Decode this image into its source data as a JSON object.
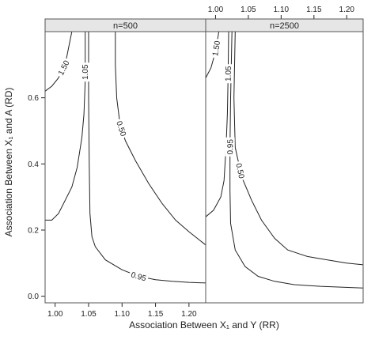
{
  "chart_data": {
    "type": "contour",
    "xlabel": "Association Between X₁ and Y (RR)",
    "ylabel": "Association Between X₁ and A (RD)",
    "xlim": [
      0.985,
      1.225
    ],
    "ylim": [
      -0.02,
      0.8
    ],
    "xticks": [
      1.0,
      1.05,
      1.1,
      1.15,
      1.2
    ],
    "xtick_labels": [
      "1.00",
      "1.05",
      "1.10",
      "1.15",
      "1.20"
    ],
    "yticks": [
      0.0,
      0.2,
      0.4,
      0.6
    ],
    "ytick_labels": [
      "0.0",
      "0.2",
      "0.4",
      "0.6"
    ],
    "panels": [
      {
        "strip": "n=500",
        "contours": [
          {
            "level": "1.50",
            "points": [
              [
                0.985,
                0.62
              ],
              [
                0.995,
                0.635
              ],
              [
                1.005,
                0.66
              ],
              [
                1.015,
                0.7
              ],
              [
                1.02,
                0.75
              ],
              [
                1.025,
                0.8
              ]
            ]
          },
          {
            "level": "1.05",
            "points": [
              [
                0.985,
                0.23
              ],
              [
                0.995,
                0.23
              ],
              [
                1.005,
                0.25
              ],
              [
                1.015,
                0.29
              ],
              [
                1.025,
                0.33
              ],
              [
                1.033,
                0.39
              ],
              [
                1.04,
                0.48
              ],
              [
                1.043,
                0.55
              ],
              [
                1.045,
                0.65
              ],
              [
                1.045,
                0.8
              ]
            ]
          },
          {
            "level": "0.50",
            "points": [
              [
                1.09,
                0.8
              ],
              [
                1.09,
                0.7
              ],
              [
                1.092,
                0.6
              ],
              [
                1.097,
                0.52
              ],
              [
                1.105,
                0.47
              ],
              [
                1.12,
                0.41
              ],
              [
                1.14,
                0.34
              ],
              [
                1.16,
                0.28
              ],
              [
                1.18,
                0.23
              ],
              [
                1.2,
                0.195
              ],
              [
                1.225,
                0.155
              ]
            ]
          },
          {
            "level": "0.95",
            "points": [
              [
                1.05,
                0.8
              ],
              [
                1.05,
                0.6
              ],
              [
                1.051,
                0.4
              ],
              [
                1.052,
                0.25
              ],
              [
                1.055,
                0.18
              ],
              [
                1.06,
                0.15
              ],
              [
                1.075,
                0.11
              ],
              [
                1.1,
                0.08
              ],
              [
                1.125,
                0.06
              ],
              [
                1.15,
                0.05
              ],
              [
                1.175,
                0.045
              ],
              [
                1.2,
                0.042
              ],
              [
                1.225,
                0.04
              ]
            ]
          }
        ]
      },
      {
        "strip": "n=2500",
        "contours": [
          {
            "level": "1.50",
            "points": [
              [
                0.985,
                0.66
              ],
              [
                0.993,
                0.69
              ],
              [
                1.0,
                0.74
              ],
              [
                1.005,
                0.8
              ]
            ]
          },
          {
            "level": "1.05",
            "points": [
              [
                0.985,
                0.24
              ],
              [
                0.997,
                0.26
              ],
              [
                1.008,
                0.3
              ],
              [
                1.013,
                0.35
              ],
              [
                1.016,
                0.45
              ],
              [
                1.018,
                0.55
              ],
              [
                1.019,
                0.65
              ],
              [
                1.02,
                0.8
              ]
            ]
          },
          {
            "level": "0.50",
            "points": [
              [
                1.03,
                0.8
              ],
              [
                1.028,
                0.6
              ],
              [
                1.03,
                0.45
              ],
              [
                1.04,
                0.36
              ],
              [
                1.055,
                0.29
              ],
              [
                1.07,
                0.23
              ],
              [
                1.09,
                0.175
              ],
              [
                1.11,
                0.14
              ],
              [
                1.14,
                0.12
              ],
              [
                1.17,
                0.11
              ],
              [
                1.2,
                0.1
              ],
              [
                1.225,
                0.095
              ]
            ]
          },
          {
            "level": "0.95",
            "points": [
              [
                1.025,
                0.8
              ],
              [
                1.023,
                0.6
              ],
              [
                1.022,
                0.45
              ],
              [
                1.022,
                0.32
              ],
              [
                1.023,
                0.22
              ],
              [
                1.03,
                0.14
              ],
              [
                1.045,
                0.09
              ],
              [
                1.065,
                0.06
              ],
              [
                1.09,
                0.045
              ],
              [
                1.12,
                0.035
              ],
              [
                1.16,
                0.03
              ],
              [
                1.225,
                0.025
              ]
            ]
          }
        ]
      }
    ],
    "grid": false
  }
}
